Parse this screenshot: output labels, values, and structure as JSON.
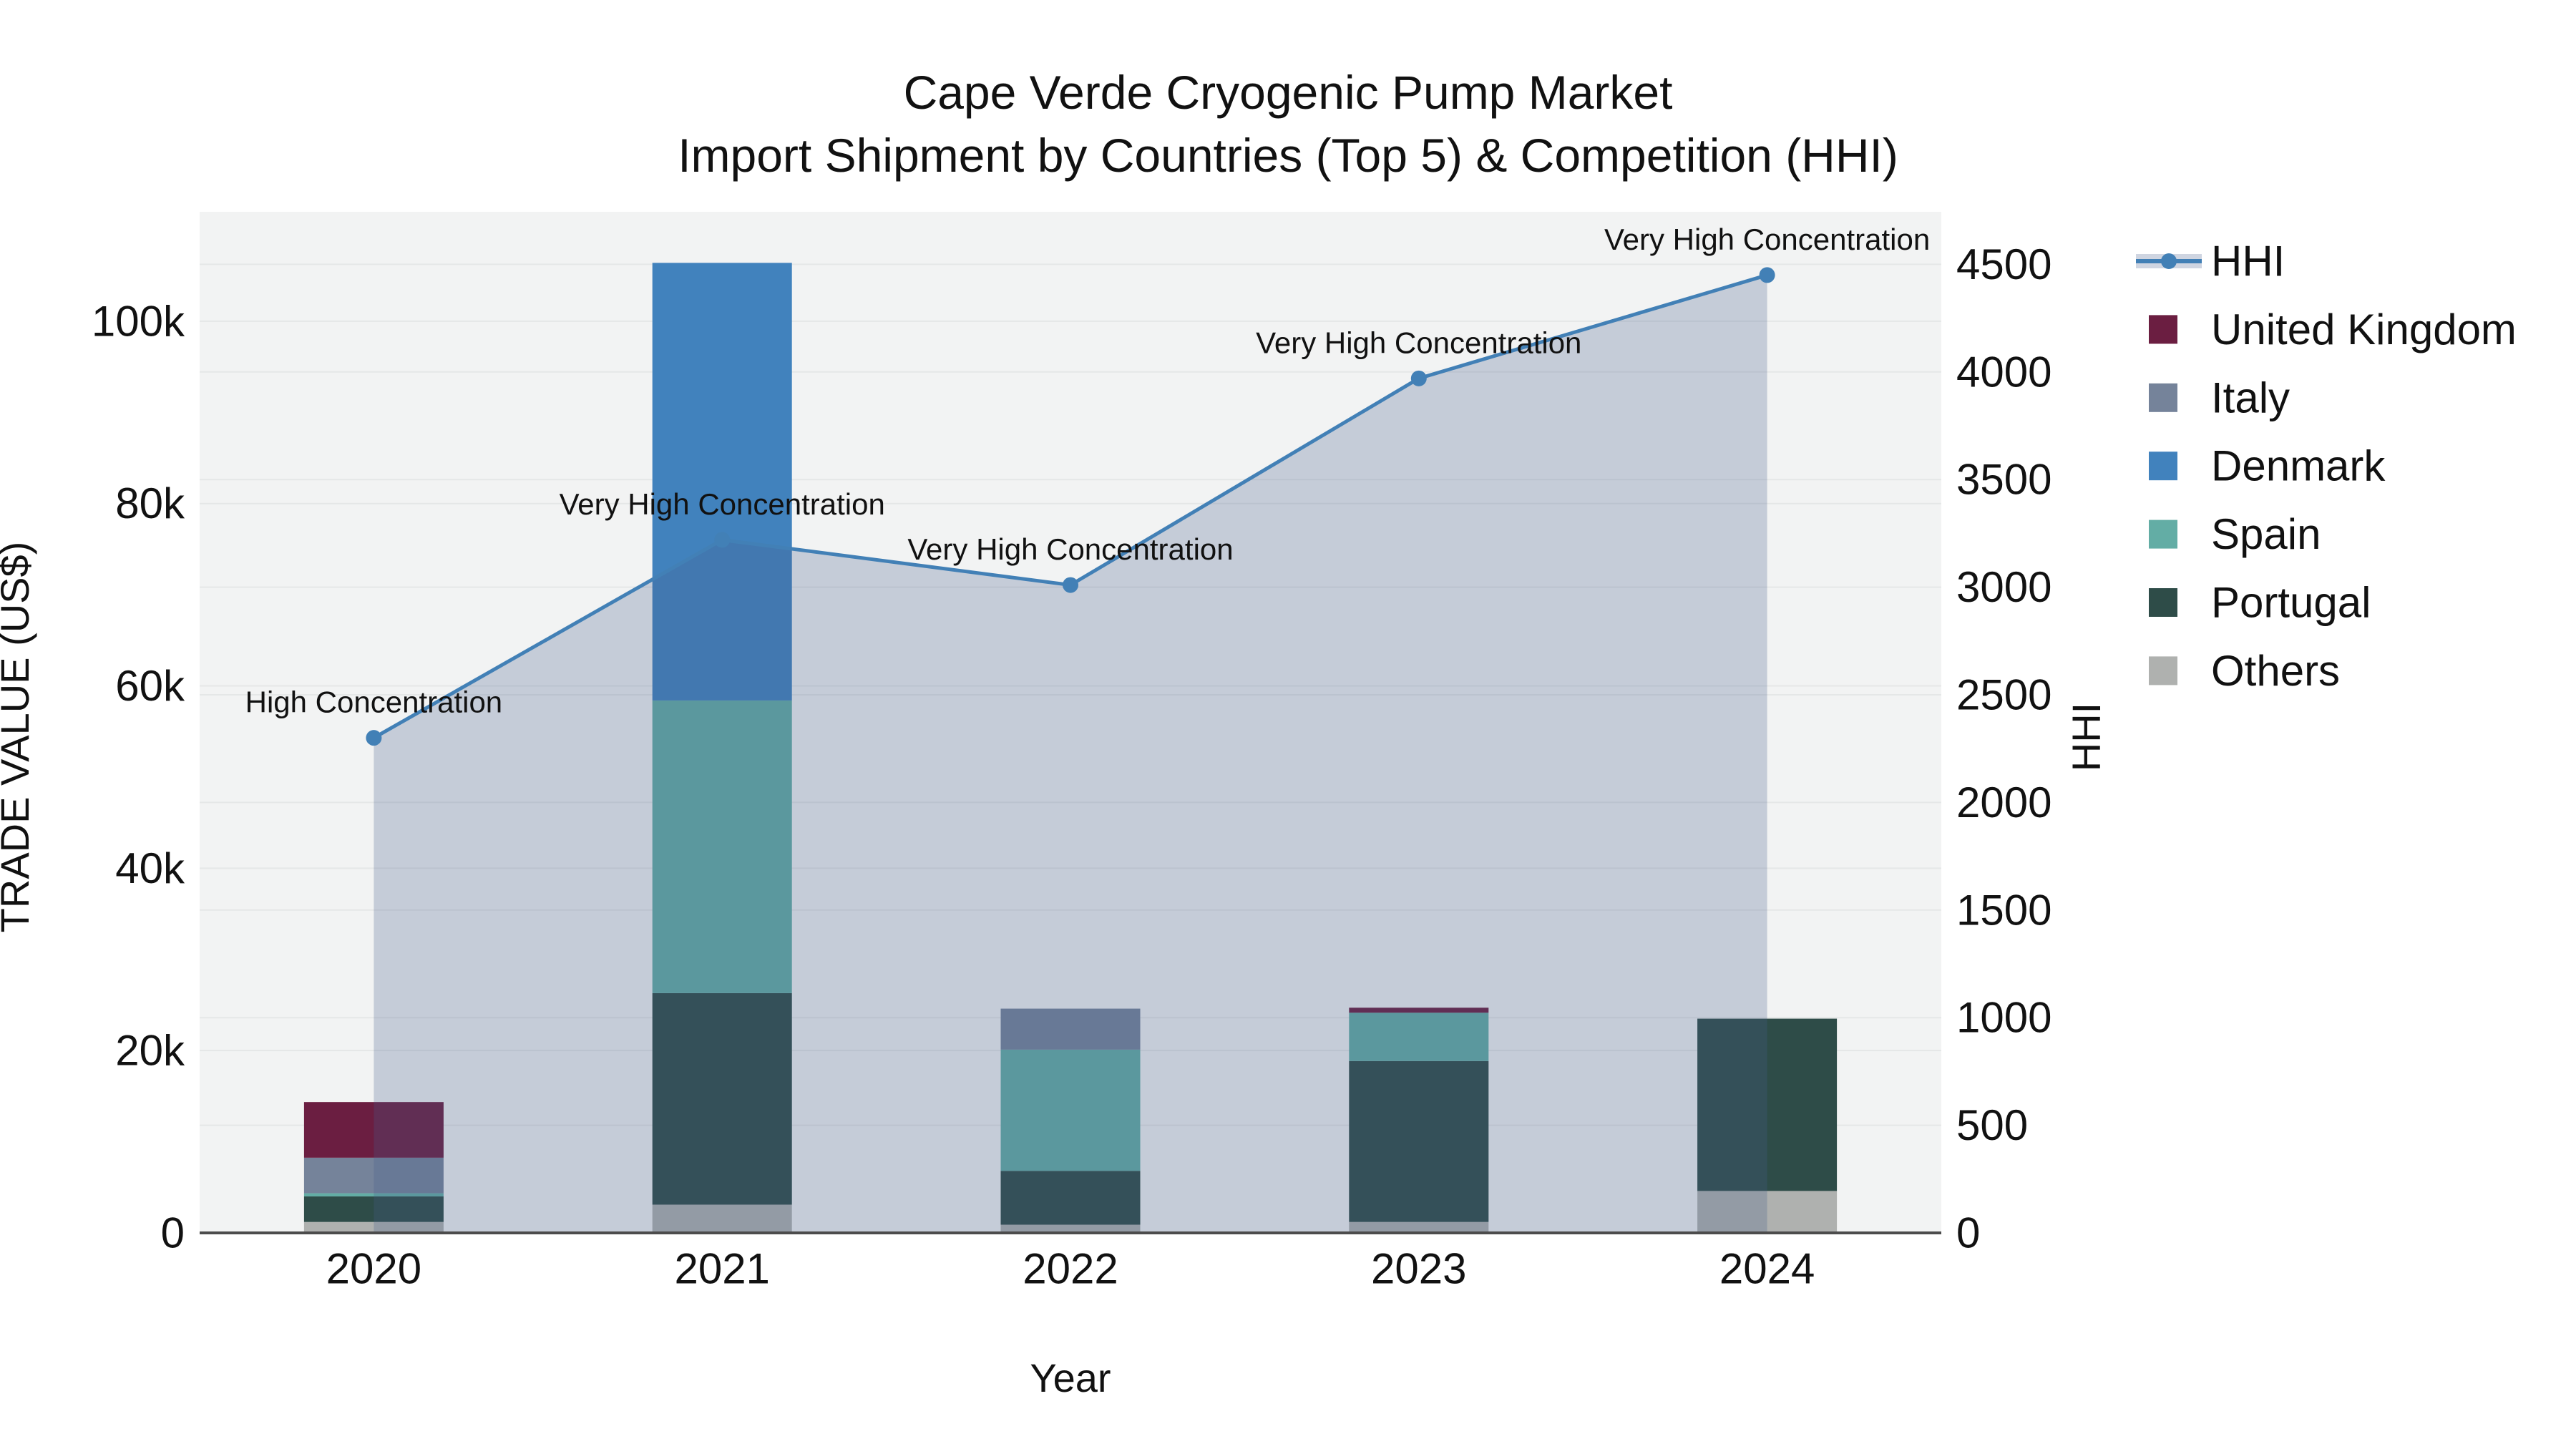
{
  "chart_data": {
    "type": "combo_stacked_bar_line",
    "title": "Cape Verde Cryogenic Pump Market",
    "subtitle": "Import Shipment by Countries (Top 5) & Competition (HHI)",
    "xlabel": "Year",
    "ylabel_left": "TRADE VALUE (US$)",
    "ylabel_right": "HHI",
    "categories": [
      "2020",
      "2021",
      "2022",
      "2023",
      "2024"
    ],
    "bar_unit": "US$",
    "bar_series_bottom_to_top": [
      {
        "name": "Others",
        "color": "#afb1af",
        "values": [
          1200,
          3100,
          900,
          1200,
          4600
        ]
      },
      {
        "name": "Portugal",
        "color": "#2e4c48",
        "values": [
          2800,
          23200,
          5900,
          17650,
          18900
        ]
      },
      {
        "name": "Spain",
        "color": "#63ada5",
        "values": [
          350,
          32100,
          13300,
          5300,
          0
        ]
      },
      {
        "name": "Denmark",
        "color": "#4182bd",
        "values": [
          0,
          48000,
          0,
          0,
          0
        ]
      },
      {
        "name": "Italy",
        "color": "#75839a",
        "values": [
          3900,
          0,
          4500,
          0,
          0
        ]
      },
      {
        "name": "United Kingdom",
        "color": "#6b1e41",
        "values": [
          6100,
          0,
          0,
          550,
          0
        ]
      }
    ],
    "bar_totals": [
      14350,
      106400,
      24600,
      24700,
      23500
    ],
    "line_series": {
      "name": "HHI",
      "color": "#4280b6",
      "area_fill_color": "rgba(71, 93, 141, 0.26)",
      "values": [
        2300,
        3220,
        3010,
        3970,
        4450
      ]
    },
    "annotations": [
      {
        "x": "2020",
        "text": "High Concentration"
      },
      {
        "x": "2021",
        "text": "Very High Concentration"
      },
      {
        "x": "2022",
        "text": "Very High Concentration"
      },
      {
        "x": "2023",
        "text": "Very High Concentration"
      },
      {
        "x": "2024",
        "text": "Very High Concentration"
      }
    ],
    "y_left_axis": {
      "ticks": [
        "0",
        "20k",
        "40k",
        "60k",
        "80k",
        "100k"
      ],
      "tick_values": [
        0,
        20000,
        40000,
        60000,
        80000,
        100000
      ],
      "range_max": 112000
    },
    "y_right_axis": {
      "ticks": [
        "0",
        "500",
        "1000",
        "1500",
        "2000",
        "2500",
        "3000",
        "3500",
        "4000",
        "4500"
      ],
      "tick_values": [
        0,
        500,
        1000,
        1500,
        2000,
        2500,
        3000,
        3500,
        4000,
        4500
      ],
      "range_max": 4744
    },
    "legend": [
      {
        "label": "HHI",
        "type": "line",
        "color": "#4280b6"
      },
      {
        "label": "United Kingdom",
        "type": "square",
        "color": "#6b1e41"
      },
      {
        "label": "Italy",
        "type": "square",
        "color": "#75839a"
      },
      {
        "label": "Denmark",
        "type": "square",
        "color": "#4182bd"
      },
      {
        "label": "Spain",
        "type": "square",
        "color": "#63ada5"
      },
      {
        "label": "Portugal",
        "type": "square",
        "color": "#2e4c48"
      },
      {
        "label": "Others",
        "type": "square",
        "color": "#afb1af"
      }
    ],
    "colors": {
      "plot_background": "#f2f3f3",
      "gridline": "#e5e7e7",
      "axis_line": "#4c4c4c",
      "text": "#111111"
    }
  }
}
